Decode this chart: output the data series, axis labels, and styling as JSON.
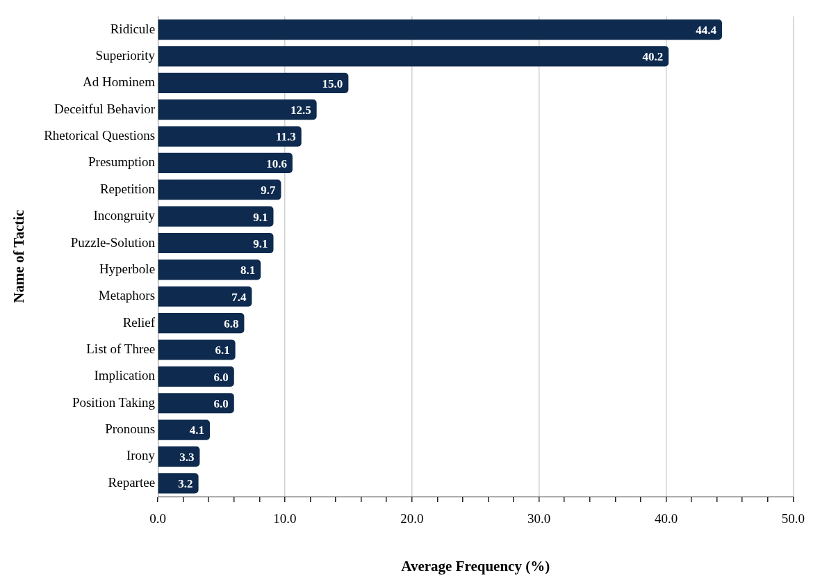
{
  "chart_data": {
    "type": "bar",
    "orientation": "horizontal",
    "xlabel": "Average Frequency (%)",
    "ylabel": "Name of Tactic",
    "categories": [
      "Ridicule",
      "Superiority",
      "Ad Hominem",
      "Deceitful Behavior",
      "Rhetorical Questions",
      "Presumption",
      "Repetition",
      "Incongruity",
      "Puzzle-Solution",
      "Hyperbole",
      "Metaphors",
      "Relief",
      "List of Three",
      "Implication",
      "Position Taking",
      "Pronouns",
      "Irony",
      "Repartee"
    ],
    "values": [
      44.4,
      40.2,
      15.0,
      12.5,
      11.3,
      10.6,
      9.7,
      9.1,
      9.1,
      8.1,
      7.4,
      6.8,
      6.1,
      6.0,
      6.0,
      4.1,
      3.3,
      3.2
    ],
    "value_labels": [
      "44.4",
      "40.2",
      "15.0",
      "12.5",
      "11.3",
      "10.6",
      "9.7",
      "9.1",
      "9.1",
      "8.1",
      "7.4",
      "6.8",
      "6.1",
      "6.0",
      "6.0",
      "4.1",
      "3.3",
      "3.2"
    ],
    "color": "#0e2a4e",
    "xlim": [
      0,
      50
    ],
    "xticks": [
      {
        "value": 0,
        "label": "0.0"
      },
      {
        "value": 2,
        "label": null
      },
      {
        "value": 4,
        "label": null
      },
      {
        "value": 6,
        "label": null
      },
      {
        "value": 8,
        "label": null
      },
      {
        "value": 10,
        "label": "10.0"
      },
      {
        "value": 12,
        "label": null
      },
      {
        "value": 14,
        "label": null
      },
      {
        "value": 16,
        "label": null
      },
      {
        "value": 18,
        "label": null
      },
      {
        "value": 20,
        "label": "20.0"
      },
      {
        "value": 22,
        "label": null
      },
      {
        "value": 24,
        "label": null
      },
      {
        "value": 26,
        "label": null
      },
      {
        "value": 28,
        "label": null
      },
      {
        "value": 30,
        "label": "30.0"
      },
      {
        "value": 32,
        "label": null
      },
      {
        "value": 34,
        "label": null
      },
      {
        "value": 36,
        "label": null
      },
      {
        "value": 38,
        "label": null
      },
      {
        "value": 40,
        "label": "40.0"
      },
      {
        "value": 42,
        "label": null
      },
      {
        "value": 44,
        "label": null
      },
      {
        "value": 46,
        "label": null
      },
      {
        "value": 48,
        "label": null
      },
      {
        "value": 50,
        "label": "50.0"
      }
    ],
    "grid": "x",
    "legend": false
  }
}
